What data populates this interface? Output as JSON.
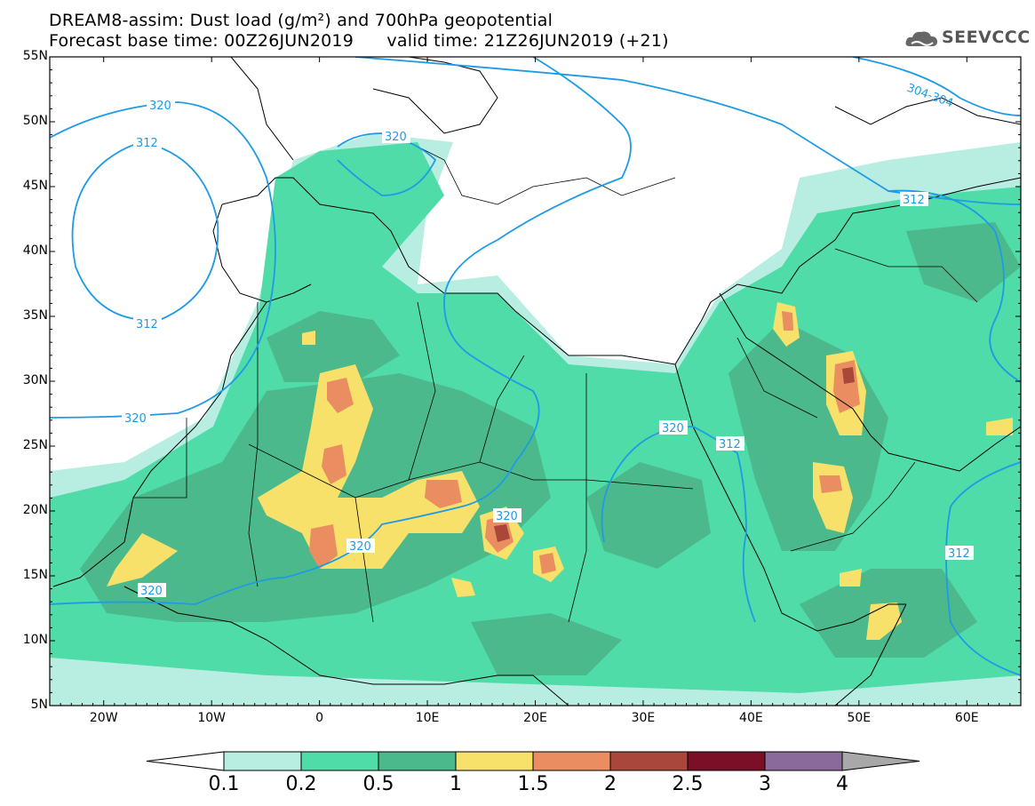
{
  "title": {
    "line1": "DREAM8-assim: Dust load (g/m²) and 700hPa geopotential",
    "line2": "Forecast base time: 00Z26JUN2019      valid time: 21Z26JUN2019 (+21)"
  },
  "logo": {
    "text": "SEEVCCC",
    "icon": "cloud-icon"
  },
  "map": {
    "lon_range": [
      -25,
      65
    ],
    "lat_range": [
      5,
      55
    ],
    "lat_ticks": [
      "55N",
      "50N",
      "45N",
      "40N",
      "35N",
      "30N",
      "25N",
      "20N",
      "15N",
      "10N",
      "5N"
    ],
    "lon_ticks": [
      "20W",
      "10W",
      "0",
      "10E",
      "20E",
      "30E",
      "40E",
      "50E",
      "60E"
    ],
    "contour_labels": [
      "320",
      "312",
      "320",
      "312",
      "320",
      "320",
      "320",
      "320",
      "320",
      "312",
      "304-304",
      "312",
      "312"
    ]
  },
  "colorbar": {
    "labels": [
      "0.1",
      "0.2",
      "0.5",
      "1",
      "1.5",
      "2",
      "2.5",
      "3",
      "4"
    ],
    "colors": [
      "#b8ede2",
      "#4fdca8",
      "#4cb98d",
      "#f7e16a",
      "#ea8e62",
      "#a9473a",
      "#7a0f27",
      "#8a6a9a",
      "#a8a8a8"
    ]
  },
  "colors": {
    "bin1": "#b8ede2",
    "bin2": "#4fdca8",
    "bin3": "#4cb98d",
    "bin4": "#f7e16a",
    "bin5": "#ea8e62",
    "bin6": "#a9473a",
    "bin7": "#7a0f27",
    "contour": "#1e9be6"
  }
}
